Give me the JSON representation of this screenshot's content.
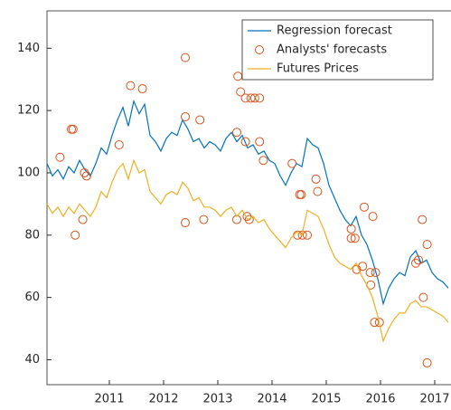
{
  "chart_data": {
    "type": "line",
    "xlim": [
      2009.85,
      2017.3
    ],
    "ylim": [
      32,
      152
    ],
    "xticks": [
      2011,
      2012,
      2013,
      2014,
      2015,
      2016,
      2017
    ],
    "yticks": [
      40,
      60,
      80,
      100,
      120,
      140
    ],
    "legend": "northeast",
    "series": [
      {
        "name": "Regression forecast",
        "color": "#0072bd",
        "style": "line",
        "x": [
          2009.85,
          2009.95,
          2010.05,
          2010.15,
          2010.25,
          2010.35,
          2010.45,
          2010.55,
          2010.65,
          2010.75,
          2010.85,
          2010.95,
          2011.05,
          2011.15,
          2011.25,
          2011.35,
          2011.45,
          2011.55,
          2011.65,
          2011.75,
          2011.85,
          2011.95,
          2012.05,
          2012.15,
          2012.25,
          2012.35,
          2012.45,
          2012.55,
          2012.65,
          2012.75,
          2012.85,
          2012.95,
          2013.05,
          2013.15,
          2013.25,
          2013.35,
          2013.45,
          2013.55,
          2013.65,
          2013.75,
          2013.85,
          2013.95,
          2014.05,
          2014.15,
          2014.25,
          2014.35,
          2014.45,
          2014.55,
          2014.65,
          2014.75,
          2014.85,
          2014.95,
          2015.05,
          2015.15,
          2015.25,
          2015.35,
          2015.45,
          2015.55,
          2015.65,
          2015.75,
          2015.85,
          2015.95,
          2016.05,
          2016.15,
          2016.25,
          2016.35,
          2016.45,
          2016.55,
          2016.65,
          2016.75,
          2016.85,
          2016.95,
          2017.05,
          2017.15,
          2017.25
        ],
        "values": [
          103,
          99,
          101,
          98,
          102,
          100,
          104,
          101,
          99,
          103,
          108,
          106,
          112,
          117,
          121,
          115,
          123,
          119,
          122,
          112,
          110,
          107,
          111,
          113,
          112,
          117,
          114,
          110,
          111,
          108,
          110,
          109,
          107,
          111,
          113,
          110,
          112,
          108,
          109,
          106,
          107,
          104,
          103,
          99,
          96,
          100,
          103,
          102,
          111,
          109,
          108,
          103,
          96,
          92,
          88,
          85,
          83,
          86,
          80,
          77,
          72,
          66,
          58,
          63,
          66,
          68,
          67,
          73,
          75,
          71,
          72,
          68,
          66,
          65,
          63
        ]
      },
      {
        "name": "Analysts' forecasts",
        "color": "#d95319",
        "style": "circle",
        "x": [
          2010.09,
          2010.3,
          2010.33,
          2010.37,
          2010.51,
          2010.54,
          2010.58,
          2011.18,
          2011.39,
          2011.61,
          2012.4,
          2012.4,
          2012.67,
          2012.4,
          2012.74,
          2013.37,
          2013.35,
          2013.42,
          2013.51,
          2013.51,
          2013.61,
          2013.68,
          2013.77,
          2013.77,
          2013.84,
          2013.54,
          2013.58,
          2013.35,
          2014.37,
          2014.51,
          2014.54,
          2014.47,
          2014.56,
          2014.65,
          2014.81,
          2014.84,
          2015.46,
          2015.46,
          2015.53,
          2015.56,
          2015.67,
          2015.7,
          2015.81,
          2015.86,
          2015.82,
          2015.91,
          2015.89,
          2015.98,
          2016.65,
          2016.7,
          2016.77,
          2016.86,
          2016.79,
          2016.86
        ],
        "values": [
          105,
          114,
          114,
          80,
          85,
          100,
          99,
          109,
          128,
          127,
          137,
          118,
          117,
          84,
          85,
          131,
          113,
          126,
          110,
          124,
          124,
          124,
          124,
          110,
          104,
          86,
          85,
          85,
          103,
          93,
          93,
          80,
          80,
          80,
          98,
          94,
          82,
          79,
          79,
          69,
          70,
          89,
          68,
          86,
          64,
          68,
          52,
          52,
          71,
          72,
          85,
          77,
          60,
          39
        ]
      },
      {
        "name": "Futures Prices",
        "color": "#edb120",
        "style": "line",
        "x": [
          2009.85,
          2009.95,
          2010.05,
          2010.15,
          2010.25,
          2010.35,
          2010.45,
          2010.55,
          2010.65,
          2010.75,
          2010.85,
          2010.95,
          2011.05,
          2011.15,
          2011.25,
          2011.35,
          2011.45,
          2011.55,
          2011.65,
          2011.75,
          2011.85,
          2011.95,
          2012.05,
          2012.15,
          2012.25,
          2012.35,
          2012.45,
          2012.55,
          2012.65,
          2012.75,
          2012.85,
          2012.95,
          2013.05,
          2013.15,
          2013.25,
          2013.35,
          2013.45,
          2013.55,
          2013.65,
          2013.75,
          2013.85,
          2013.95,
          2014.05,
          2014.15,
          2014.25,
          2014.35,
          2014.45,
          2014.55,
          2014.65,
          2014.75,
          2014.85,
          2014.95,
          2015.05,
          2015.15,
          2015.25,
          2015.35,
          2015.45,
          2015.55,
          2015.65,
          2015.75,
          2015.85,
          2015.95,
          2016.05,
          2016.15,
          2016.25,
          2016.35,
          2016.45,
          2016.55,
          2016.65,
          2016.75,
          2016.85,
          2016.95,
          2017.05,
          2017.15,
          2017.25
        ],
        "values": [
          90,
          87,
          89,
          86,
          89,
          87,
          90,
          88,
          86,
          89,
          94,
          92,
          97,
          101,
          103,
          98,
          104,
          100,
          101,
          94,
          92,
          90,
          93,
          94,
          93,
          97,
          95,
          91,
          92,
          89,
          89,
          88,
          86,
          88,
          89,
          86,
          88,
          85,
          86,
          84,
          85,
          82,
          80,
          78,
          76,
          79,
          81,
          80,
          88,
          87,
          86,
          82,
          77,
          73,
          71,
          70,
          69,
          71,
          67,
          64,
          60,
          54,
          46,
          50,
          53,
          55,
          55,
          58,
          59,
          57,
          57,
          56,
          55,
          54,
          52
        ]
      }
    ]
  }
}
